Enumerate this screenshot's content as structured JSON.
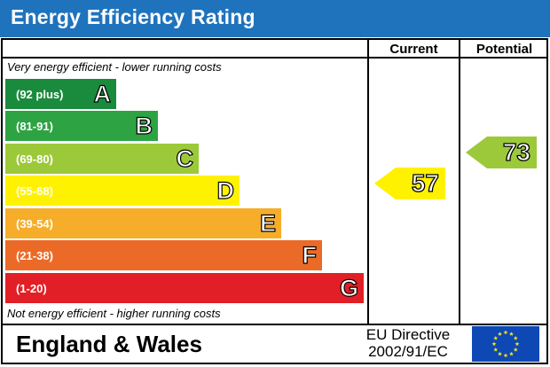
{
  "header": {
    "title": "Energy Efficiency Rating"
  },
  "columns": {
    "current": "Current",
    "potential": "Potential"
  },
  "notes": {
    "top": "Very energy efficient - lower running costs",
    "bottom": "Not energy efficient - higher running costs"
  },
  "bands": [
    {
      "range": "(92 plus)",
      "letter": "A",
      "color": "#1a8a3c"
    },
    {
      "range": "(81-91)",
      "letter": "B",
      "color": "#2ea343"
    },
    {
      "range": "(69-80)",
      "letter": "C",
      "color": "#9cc93a"
    },
    {
      "range": "(55-68)",
      "letter": "D",
      "color": "#fff200"
    },
    {
      "range": "(39-54)",
      "letter": "E",
      "color": "#f6ad2a"
    },
    {
      "range": "(21-38)",
      "letter": "F",
      "color": "#ec6a28"
    },
    {
      "range": "(1-20)",
      "letter": "G",
      "color": "#e21f26"
    }
  ],
  "ratings": {
    "current": {
      "value": "57",
      "band": "D",
      "color": "#fff200"
    },
    "potential": {
      "value": "73",
      "band": "C",
      "color": "#9cc93a"
    }
  },
  "footer": {
    "region": "England & Wales",
    "directive_line1": "EU Directive",
    "directive_line2": "2002/91/EC",
    "flag_color": "#0e48b4",
    "star_color": "#ffe400"
  }
}
